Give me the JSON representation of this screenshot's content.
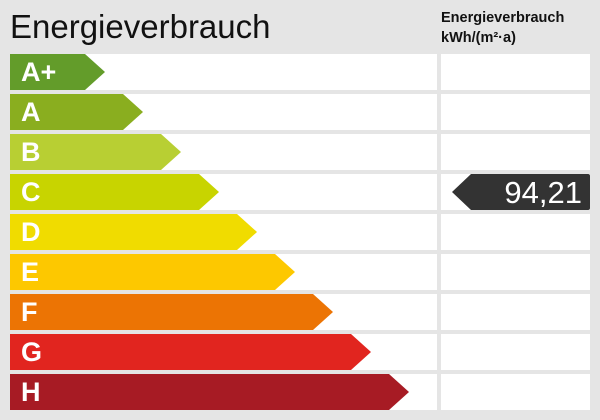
{
  "header": {
    "title": "Energieverbrauch",
    "subtitle_line1": "Energieverbrauch",
    "subtitle_line2": "kWh/(m²·a)"
  },
  "classes": [
    {
      "label": "A+",
      "color": "#639c2a"
    },
    {
      "label": "A",
      "color": "#8aae1f"
    },
    {
      "label": "B",
      "color": "#b8cf33"
    },
    {
      "label": "C",
      "color": "#c8d400"
    },
    {
      "label": "D",
      "color": "#f0dc00"
    },
    {
      "label": "E",
      "color": "#fdc800"
    },
    {
      "label": "F",
      "color": "#ec7404"
    },
    {
      "label": "G",
      "color": "#e1251f"
    },
    {
      "label": "H",
      "color": "#a71b24"
    }
  ],
  "indicator": {
    "value": "94,21",
    "class": "C",
    "color": "#333333"
  }
}
